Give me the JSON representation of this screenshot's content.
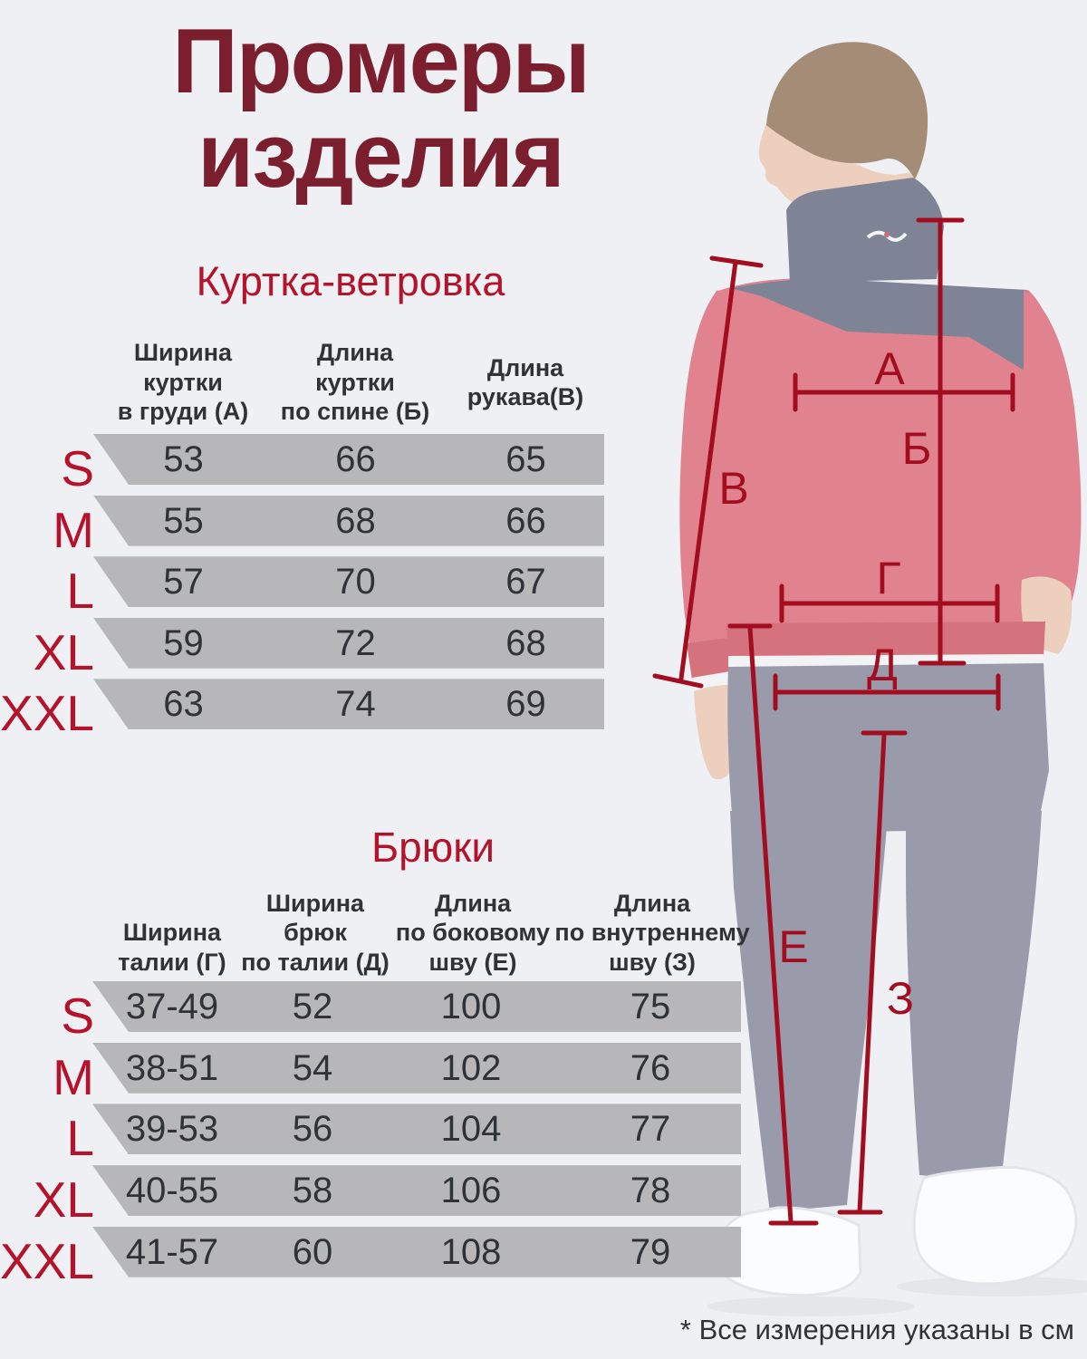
{
  "header": {
    "title": "Промеры\nизделия"
  },
  "jacket": {
    "heading": "Куртка-ветровка",
    "columns": [
      "Ширина\nкуртки\nв груди (А)",
      "Длина\nкуртки\nпо спине (Б)",
      "Длина\nрукава(В)"
    ],
    "rows": [
      {
        "size": "S",
        "values": [
          "53",
          "66",
          "65"
        ]
      },
      {
        "size": "M",
        "values": [
          "55",
          "68",
          "66"
        ]
      },
      {
        "size": "L",
        "values": [
          "57",
          "70",
          "67"
        ]
      },
      {
        "size": "XL",
        "values": [
          "59",
          "72",
          "68"
        ]
      },
      {
        "size": "XXL",
        "values": [
          "63",
          "74",
          "69"
        ]
      }
    ]
  },
  "pants": {
    "heading": "Брюки",
    "columns": [
      "Ширина\nталии (Г)",
      "Ширина\nбрюк\nпо талии (Д)",
      "Длина\nпо боковому\nшву (Е)",
      "Длина\nпо внутреннему\nшву (З)"
    ],
    "rows": [
      {
        "size": "S",
        "values": [
          "37-49",
          "52",
          "100",
          "75"
        ]
      },
      {
        "size": "M",
        "values": [
          "38-51",
          "54",
          "102",
          "76"
        ]
      },
      {
        "size": "L",
        "values": [
          "39-53",
          "56",
          "104",
          "77"
        ]
      },
      {
        "size": "XL",
        "values": [
          "40-55",
          "58",
          "106",
          "78"
        ]
      },
      {
        "size": "XXL",
        "values": [
          "41-57",
          "60",
          "108",
          "79"
        ]
      }
    ]
  },
  "figure": {
    "labels": {
      "chest": "А",
      "back_length": "Б",
      "sleeve": "В",
      "hem_width": "Г",
      "waist": "Д",
      "side_seam": "Е",
      "inseam": "З"
    }
  },
  "footnote": "* Все измерения указаны в см",
  "colors": {
    "title": "#7b1e2e",
    "accent": "#b5122c",
    "line": "#a30d20",
    "band": "#b7b7b9",
    "text": "#2f3237",
    "bg": "#eef0f3"
  }
}
